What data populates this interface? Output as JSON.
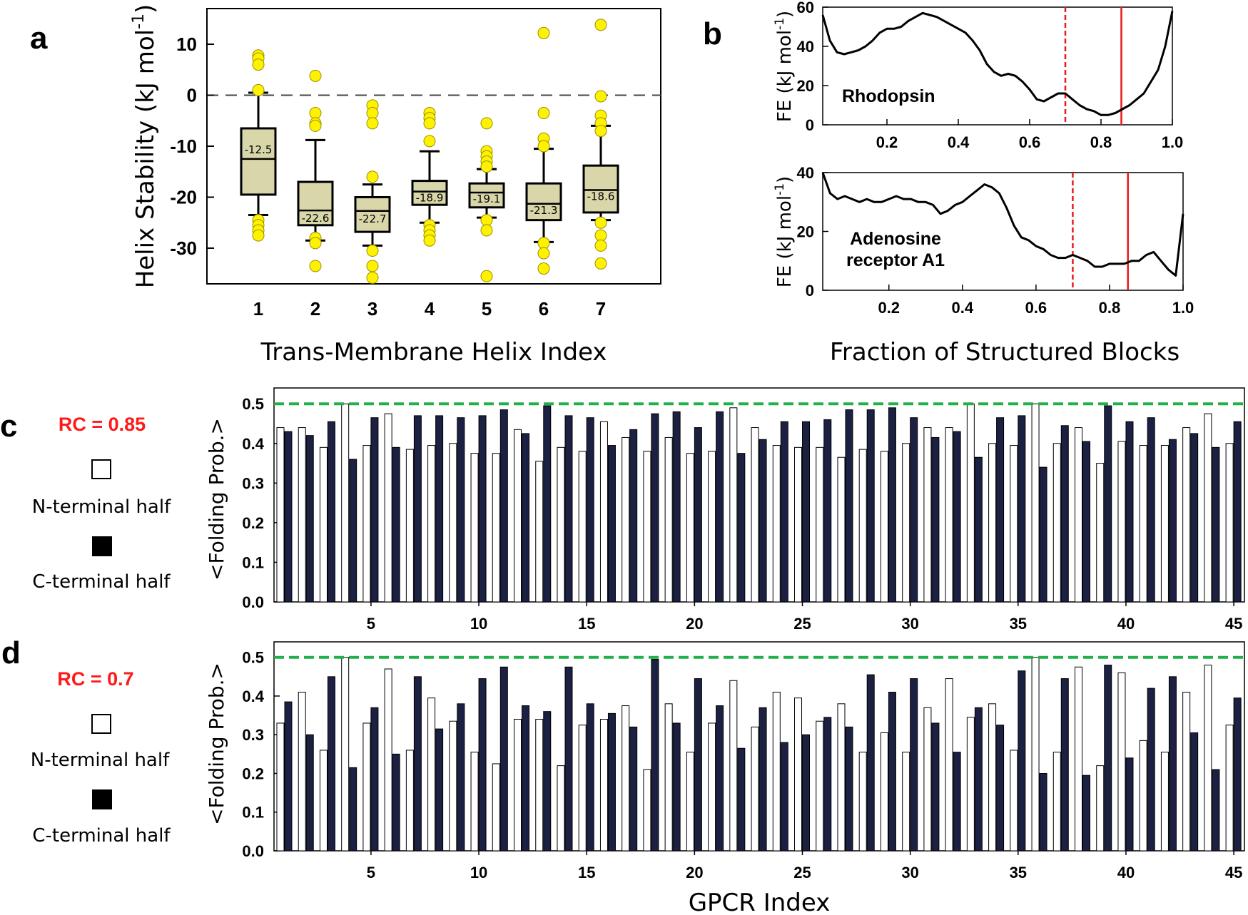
{
  "chart_data": [
    {
      "id": "a",
      "type": "box",
      "panel_label": "a",
      "xlabel": "Trans-Membrane Helix Index",
      "ylabel": "Helix Stability (kJ mol",
      "ylabel_sup": "-1",
      "ylabel_close": ")",
      "ylim": [
        -37,
        17
      ],
      "yticks": [
        10,
        0,
        -10,
        -20,
        -30
      ],
      "reference_line": 0,
      "box_color": "#d9d6a9",
      "outlier_color": "#fff200",
      "boxes": [
        {
          "label": "1",
          "median": -12.5,
          "median_label": "-12.5",
          "q1": -19.5,
          "q3": -6.5,
          "whisker_low": -23.5,
          "whisker_high": 0.5,
          "outliers": [
            7.8,
            7.2,
            6.0,
            1.0,
            -24.5,
            -25.5,
            -26.5,
            -27.5
          ]
        },
        {
          "label": "2",
          "median": -22.6,
          "median_label": "-22.6",
          "q1": -25.5,
          "q3": -17.0,
          "whisker_low": -28.5,
          "whisker_high": -8.8,
          "outliers": [
            3.8,
            -3.5,
            -5.5,
            -6.0,
            -28.0,
            -29.0,
            -33.5
          ]
        },
        {
          "label": "3",
          "median": -22.7,
          "median_label": "-22.7",
          "q1": -26.8,
          "q3": -20.0,
          "whisker_low": -29.5,
          "whisker_high": -17.5,
          "outliers": [
            -2.0,
            -3.5,
            -5.5,
            -16.0,
            -30.5,
            -33.5,
            -35.8
          ]
        },
        {
          "label": "4",
          "median": -18.9,
          "median_label": "-18.9",
          "q1": -21.5,
          "q3": -16.8,
          "whisker_low": -25.0,
          "whisker_high": -11.0,
          "outliers": [
            -3.5,
            -4.5,
            -5.5,
            -9.0,
            -25.5,
            -26.5,
            -27.5,
            -28.5
          ]
        },
        {
          "label": "5",
          "median": -19.1,
          "median_label": "-19.1",
          "q1": -22.0,
          "q3": -17.3,
          "whisker_low": -24.0,
          "whisker_high": -14.5,
          "outliers": [
            -5.5,
            -11.0,
            -12.0,
            -13.0,
            -14.0,
            -24.5,
            -26.5,
            -35.5
          ]
        },
        {
          "label": "6",
          "median": -21.3,
          "median_label": "-21.3",
          "q1": -24.5,
          "q3": -17.3,
          "whisker_low": -28.8,
          "whisker_high": -10.5,
          "outliers": [
            12.2,
            -3.5,
            -8.5,
            -10.0,
            -29.0,
            -31.0,
            -34.0
          ]
        },
        {
          "label": "7",
          "median": -18.6,
          "median_label": "-18.6",
          "q1": -23.0,
          "q3": -13.8,
          "whisker_low": -24.5,
          "whisker_high": -6.0,
          "outliers": [
            13.8,
            -0.2,
            -4.0,
            -5.5,
            -7.0,
            -25.0,
            -27.5,
            -29.5,
            -33.0
          ]
        }
      ]
    },
    {
      "id": "b1",
      "type": "line",
      "panel_label": "b",
      "title": "Rhodopsin",
      "ylabel": "FE (kJ mol",
      "ylabel_sup": "-1",
      "ylabel_close": ")",
      "xlim": [
        0.02,
        1.0
      ],
      "ylim": [
        0,
        60
      ],
      "xticks": [
        "0.2",
        "0.4",
        "0.6",
        "0.8",
        "1.0"
      ],
      "xtick_values": [
        0.2,
        0.4,
        0.6,
        0.8,
        1.0
      ],
      "yticks": [
        0,
        20,
        40,
        60
      ],
      "vlines": [
        {
          "x": 0.7,
          "style": "dashed",
          "color": "#e8191c"
        },
        {
          "x": 0.857,
          "style": "solid",
          "color": "#e8191c"
        }
      ],
      "x": [
        0.02,
        0.04,
        0.06,
        0.08,
        0.1,
        0.12,
        0.14,
        0.16,
        0.18,
        0.2,
        0.22,
        0.24,
        0.26,
        0.28,
        0.3,
        0.32,
        0.34,
        0.36,
        0.38,
        0.4,
        0.42,
        0.44,
        0.46,
        0.48,
        0.5,
        0.52,
        0.54,
        0.56,
        0.58,
        0.6,
        0.62,
        0.64,
        0.66,
        0.68,
        0.7,
        0.72,
        0.74,
        0.76,
        0.78,
        0.8,
        0.82,
        0.84,
        0.86,
        0.88,
        0.9,
        0.92,
        0.94,
        0.96,
        0.98,
        1.0
      ],
      "y": [
        56,
        43,
        37,
        36,
        37,
        38,
        40,
        43,
        47,
        49,
        49,
        50,
        53,
        55,
        57,
        56,
        55,
        53,
        51,
        49,
        47,
        43,
        38,
        31,
        27,
        25,
        26,
        25,
        22,
        18,
        13,
        12,
        14,
        16,
        16,
        13,
        10,
        8,
        7,
        5,
        5,
        6,
        8,
        10,
        13,
        16,
        22,
        28,
        40,
        58
      ]
    },
    {
      "id": "b2",
      "type": "line",
      "title_lines": [
        "Adenosine",
        "receptor A1"
      ],
      "ylabel": "FE (kJ mol",
      "ylabel_sup": "-1",
      "ylabel_close": ")",
      "xlabel": "Fraction of Structured Blocks",
      "xlim": [
        0.02,
        1.0
      ],
      "ylim": [
        0,
        40
      ],
      "xticks": [
        "0.2",
        "0.4",
        "0.6",
        "0.8",
        "1.0"
      ],
      "xtick_values": [
        0.2,
        0.4,
        0.6,
        0.8,
        1.0
      ],
      "yticks": [
        0,
        20,
        40
      ],
      "vlines": [
        {
          "x": 0.7,
          "style": "dashed",
          "color": "#e8191c"
        },
        {
          "x": 0.85,
          "style": "solid",
          "color": "#e8191c"
        }
      ],
      "x": [
        0.02,
        0.04,
        0.06,
        0.08,
        0.1,
        0.12,
        0.14,
        0.16,
        0.18,
        0.2,
        0.22,
        0.24,
        0.26,
        0.28,
        0.3,
        0.32,
        0.34,
        0.36,
        0.38,
        0.4,
        0.42,
        0.44,
        0.46,
        0.48,
        0.5,
        0.52,
        0.54,
        0.56,
        0.58,
        0.6,
        0.62,
        0.64,
        0.66,
        0.68,
        0.7,
        0.72,
        0.74,
        0.76,
        0.78,
        0.8,
        0.82,
        0.84,
        0.86,
        0.88,
        0.9,
        0.92,
        0.94,
        0.96,
        0.98,
        1.0
      ],
      "y": [
        40,
        33,
        31,
        32,
        31,
        30,
        31,
        30,
        30,
        31,
        32,
        31,
        31,
        30,
        30,
        29,
        26,
        27,
        29,
        30,
        32,
        34,
        36,
        35,
        33,
        28,
        22,
        18,
        17,
        15,
        14,
        12,
        11,
        11,
        12,
        11,
        10,
        8,
        8,
        9,
        9,
        9,
        10,
        10,
        12,
        13,
        10,
        7,
        5,
        26
      ]
    },
    {
      "id": "c",
      "type": "bar",
      "panel_label": "c",
      "rc_label": "RC = 0.85",
      "legend": [
        "N-terminal half",
        "C-terminal half"
      ],
      "ylabel": "<Folding Prob.>",
      "ylim": [
        0,
        0.54
      ],
      "yticks": [
        "0.0",
        "0.1",
        "0.2",
        "0.3",
        "0.4",
        "0.5"
      ],
      "ytick_values": [
        0,
        0.1,
        0.2,
        0.3,
        0.4,
        0.5
      ],
      "xticks": [
        "5",
        "10",
        "15",
        "20",
        "25",
        "30",
        "35",
        "40",
        "45"
      ],
      "xtick_values": [
        5,
        10,
        15,
        20,
        25,
        30,
        35,
        40,
        45
      ],
      "threshold": 0.5,
      "colors": {
        "n_fill": "#ffffff",
        "c_fill": "#1c2042",
        "threshold": "#21b04b"
      },
      "categories": [
        1,
        2,
        3,
        4,
        5,
        6,
        7,
        8,
        9,
        10,
        11,
        12,
        13,
        14,
        15,
        16,
        17,
        18,
        19,
        20,
        21,
        22,
        23,
        24,
        25,
        26,
        27,
        28,
        29,
        30,
        31,
        32,
        33,
        34,
        35,
        36,
        37,
        38,
        39,
        40,
        41,
        42,
        43,
        44,
        45
      ],
      "series": [
        {
          "name": "N-terminal half",
          "values": [
            0.44,
            0.44,
            0.39,
            0.5,
            0.395,
            0.475,
            0.385,
            0.395,
            0.4,
            0.375,
            0.375,
            0.435,
            0.355,
            0.39,
            0.38,
            0.455,
            0.415,
            0.38,
            0.415,
            0.375,
            0.38,
            0.49,
            0.44,
            0.395,
            0.39,
            0.39,
            0.365,
            0.385,
            0.38,
            0.4,
            0.44,
            0.44,
            0.5,
            0.4,
            0.395,
            0.5,
            0.4,
            0.44,
            0.35,
            0.405,
            0.395,
            0.395,
            0.44,
            0.475,
            0.4
          ]
        },
        {
          "name": "C-terminal half",
          "values": [
            0.43,
            0.42,
            0.455,
            0.36,
            0.465,
            0.39,
            0.47,
            0.47,
            0.465,
            0.47,
            0.485,
            0.425,
            0.495,
            0.47,
            0.465,
            0.395,
            0.435,
            0.475,
            0.48,
            0.44,
            0.48,
            0.375,
            0.41,
            0.455,
            0.455,
            0.46,
            0.485,
            0.485,
            0.49,
            0.465,
            0.415,
            0.43,
            0.365,
            0.465,
            0.47,
            0.34,
            0.445,
            0.405,
            0.495,
            0.455,
            0.465,
            0.41,
            0.425,
            0.39,
            0.455
          ]
        }
      ]
    },
    {
      "id": "d",
      "type": "bar",
      "panel_label": "d",
      "rc_label": "RC = 0.7",
      "legend": [
        "N-terminal half",
        "C-terminal half"
      ],
      "ylabel": "<Folding Prob.>",
      "xlabel": "GPCR Index",
      "ylim": [
        0,
        0.54
      ],
      "yticks": [
        "0.0",
        "0.1",
        "0.2",
        "0.3",
        "0.4",
        "0.5"
      ],
      "ytick_values": [
        0,
        0.1,
        0.2,
        0.3,
        0.4,
        0.5
      ],
      "xticks": [
        "5",
        "10",
        "15",
        "20",
        "25",
        "30",
        "35",
        "40",
        "45"
      ],
      "xtick_values": [
        5,
        10,
        15,
        20,
        25,
        30,
        35,
        40,
        45
      ],
      "threshold": 0.5,
      "colors": {
        "n_fill": "#ffffff",
        "c_fill": "#1c2042",
        "threshold": "#21b04b"
      },
      "categories": [
        1,
        2,
        3,
        4,
        5,
        6,
        7,
        8,
        9,
        10,
        11,
        12,
        13,
        14,
        15,
        16,
        17,
        18,
        19,
        20,
        21,
        22,
        23,
        24,
        25,
        26,
        27,
        28,
        29,
        30,
        31,
        32,
        33,
        34,
        35,
        36,
        37,
        38,
        39,
        40,
        41,
        42,
        43,
        44,
        45
      ],
      "series": [
        {
          "name": "N-terminal half",
          "values": [
            0.33,
            0.41,
            0.26,
            0.5,
            0.33,
            0.47,
            0.26,
            0.395,
            0.335,
            0.255,
            0.225,
            0.34,
            0.34,
            0.22,
            0.325,
            0.34,
            0.375,
            0.21,
            0.38,
            0.255,
            0.33,
            0.44,
            0.32,
            0.41,
            0.395,
            0.335,
            0.38,
            0.255,
            0.305,
            0.255,
            0.37,
            0.445,
            0.345,
            0.38,
            0.26,
            0.5,
            0.255,
            0.475,
            0.22,
            0.46,
            0.285,
            0.255,
            0.41,
            0.48,
            0.325
          ]
        },
        {
          "name": "C-terminal half",
          "values": [
            0.385,
            0.3,
            0.45,
            0.215,
            0.37,
            0.25,
            0.45,
            0.315,
            0.38,
            0.445,
            0.475,
            0.375,
            0.36,
            0.475,
            0.38,
            0.355,
            0.32,
            0.495,
            0.33,
            0.445,
            0.375,
            0.265,
            0.37,
            0.28,
            0.3,
            0.345,
            0.32,
            0.455,
            0.41,
            0.445,
            0.33,
            0.255,
            0.37,
            0.325,
            0.465,
            0.2,
            0.445,
            0.195,
            0.48,
            0.24,
            0.42,
            0.45,
            0.305,
            0.21,
            0.395
          ]
        }
      ]
    }
  ]
}
